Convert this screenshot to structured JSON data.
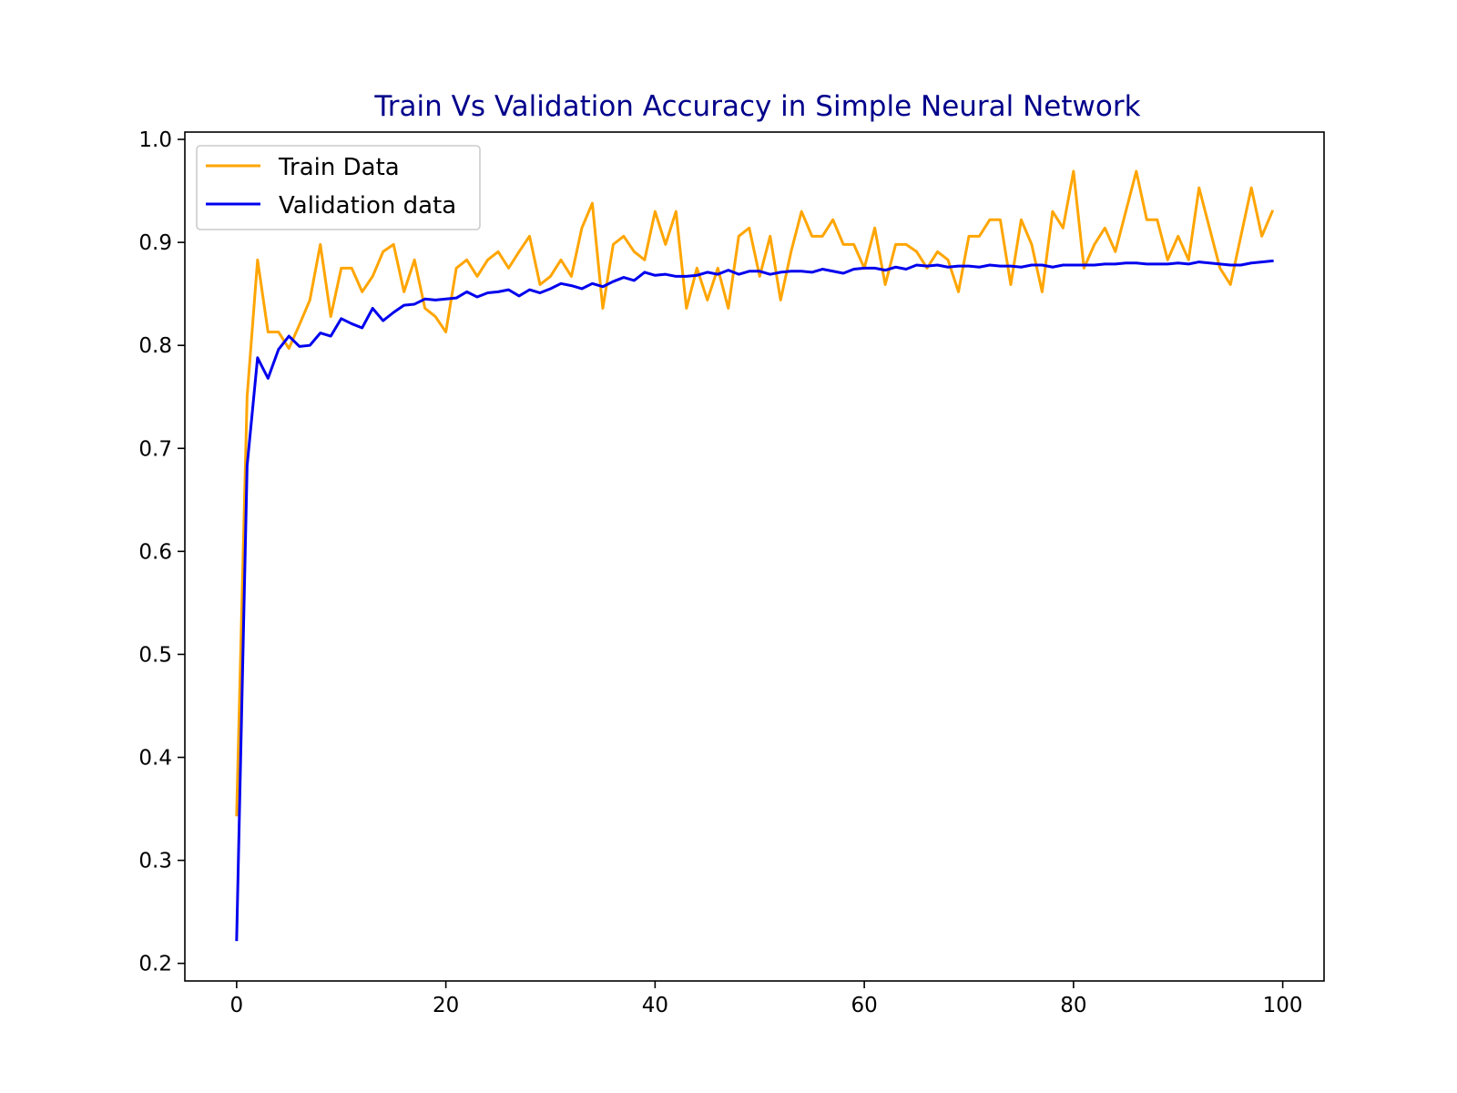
{
  "chart_data": {
    "type": "line",
    "title": "Train Vs Validation Accuracy in Simple Neural Network",
    "xlabel": "",
    "ylabel": "",
    "xlim": [
      -4.95,
      103.95
    ],
    "ylim": [
      0.1829,
      1.0071
    ],
    "x_ticks": [
      0,
      20,
      40,
      60,
      80,
      100
    ],
    "y_ticks": [
      0.2,
      0.3,
      0.4,
      0.5,
      0.6,
      0.7,
      0.8,
      0.9,
      1.0
    ],
    "x_tick_labels": [
      "0",
      "20",
      "40",
      "60",
      "80",
      "100"
    ],
    "y_tick_labels": [
      "0.2",
      "0.3",
      "0.4",
      "0.5",
      "0.6",
      "0.7",
      "0.8",
      "0.9",
      "1.0"
    ],
    "grid": false,
    "legend_position": "upper-left",
    "title_color": "#00008b",
    "series": [
      {
        "name": "Train Data",
        "color": "#ffa500",
        "x": [
          0,
          1,
          2,
          3,
          4,
          5,
          6,
          7,
          8,
          9,
          10,
          11,
          12,
          13,
          14,
          15,
          16,
          17,
          18,
          19,
          20,
          21,
          22,
          23,
          24,
          25,
          26,
          27,
          28,
          29,
          30,
          31,
          32,
          33,
          34,
          35,
          36,
          37,
          38,
          39,
          40,
          41,
          42,
          43,
          44,
          45,
          46,
          47,
          48,
          49,
          50,
          51,
          52,
          53,
          54,
          55,
          56,
          57,
          58,
          59,
          60,
          61,
          62,
          63,
          64,
          65,
          66,
          67,
          68,
          69,
          70,
          71,
          72,
          73,
          74,
          75,
          76,
          77,
          78,
          79,
          80,
          81,
          82,
          83,
          84,
          85,
          86,
          87,
          88,
          89,
          90,
          91,
          92,
          93,
          94,
          95,
          96,
          97,
          98,
          99
        ],
        "values": [
          0.344,
          0.75,
          0.883,
          0.813,
          0.813,
          0.797,
          0.82,
          0.844,
          0.898,
          0.828,
          0.875,
          0.875,
          0.852,
          0.867,
          0.891,
          0.898,
          0.852,
          0.883,
          0.836,
          0.828,
          0.813,
          0.875,
          0.883,
          0.867,
          0.883,
          0.891,
          0.875,
          0.891,
          0.906,
          0.859,
          0.867,
          0.883,
          0.867,
          0.914,
          0.938,
          0.836,
          0.898,
          0.906,
          0.891,
          0.883,
          0.93,
          0.898,
          0.93,
          0.836,
          0.875,
          0.844,
          0.875,
          0.836,
          0.906,
          0.914,
          0.867,
          0.906,
          0.844,
          0.891,
          0.93,
          0.906,
          0.906,
          0.922,
          0.898,
          0.898,
          0.875,
          0.914,
          0.859,
          0.898,
          0.898,
          0.891,
          0.875,
          0.891,
          0.883,
          0.852,
          0.906,
          0.906,
          0.922,
          0.922,
          0.859,
          0.922,
          0.898,
          0.852,
          0.93,
          0.914,
          0.969,
          0.875,
          0.898,
          0.914,
          0.891,
          0.93,
          0.969,
          0.922,
          0.922,
          0.883,
          0.906,
          0.883,
          0.953,
          0.914,
          0.875,
          0.859,
          0.906,
          0.953,
          0.906,
          0.93
        ]
      },
      {
        "name": "Validation data",
        "color": "#0000ee",
        "x": [
          0,
          1,
          2,
          3,
          4,
          5,
          6,
          7,
          8,
          9,
          10,
          11,
          12,
          13,
          14,
          15,
          16,
          17,
          18,
          19,
          20,
          21,
          22,
          23,
          24,
          25,
          26,
          27,
          28,
          29,
          30,
          31,
          32,
          33,
          34,
          35,
          36,
          37,
          38,
          39,
          40,
          41,
          42,
          43,
          44,
          45,
          46,
          47,
          48,
          49,
          50,
          51,
          52,
          53,
          54,
          55,
          56,
          57,
          58,
          59,
          60,
          61,
          62,
          63,
          64,
          65,
          66,
          67,
          68,
          69,
          70,
          71,
          72,
          73,
          74,
          75,
          76,
          77,
          78,
          79,
          80,
          81,
          82,
          83,
          84,
          85,
          86,
          87,
          88,
          89,
          90,
          91,
          92,
          93,
          94,
          95,
          96,
          97,
          98,
          99
        ],
        "values": [
          0.223,
          0.683,
          0.788,
          0.768,
          0.796,
          0.809,
          0.799,
          0.8,
          0.812,
          0.809,
          0.826,
          0.821,
          0.817,
          0.836,
          0.824,
          0.832,
          0.839,
          0.84,
          0.845,
          0.844,
          0.845,
          0.846,
          0.852,
          0.847,
          0.851,
          0.852,
          0.854,
          0.848,
          0.854,
          0.851,
          0.855,
          0.86,
          0.858,
          0.855,
          0.86,
          0.857,
          0.862,
          0.866,
          0.863,
          0.871,
          0.868,
          0.869,
          0.867,
          0.867,
          0.868,
          0.871,
          0.869,
          0.873,
          0.869,
          0.872,
          0.872,
          0.869,
          0.871,
          0.872,
          0.872,
          0.871,
          0.874,
          0.872,
          0.87,
          0.874,
          0.875,
          0.875,
          0.873,
          0.876,
          0.874,
          0.878,
          0.877,
          0.878,
          0.876,
          0.877,
          0.877,
          0.876,
          0.878,
          0.877,
          0.877,
          0.876,
          0.878,
          0.878,
          0.876,
          0.878,
          0.878,
          0.878,
          0.878,
          0.879,
          0.879,
          0.88,
          0.88,
          0.879,
          0.879,
          0.879,
          0.88,
          0.879,
          0.881,
          0.88,
          0.879,
          0.878,
          0.878,
          0.88,
          0.881,
          0.882
        ]
      }
    ]
  }
}
